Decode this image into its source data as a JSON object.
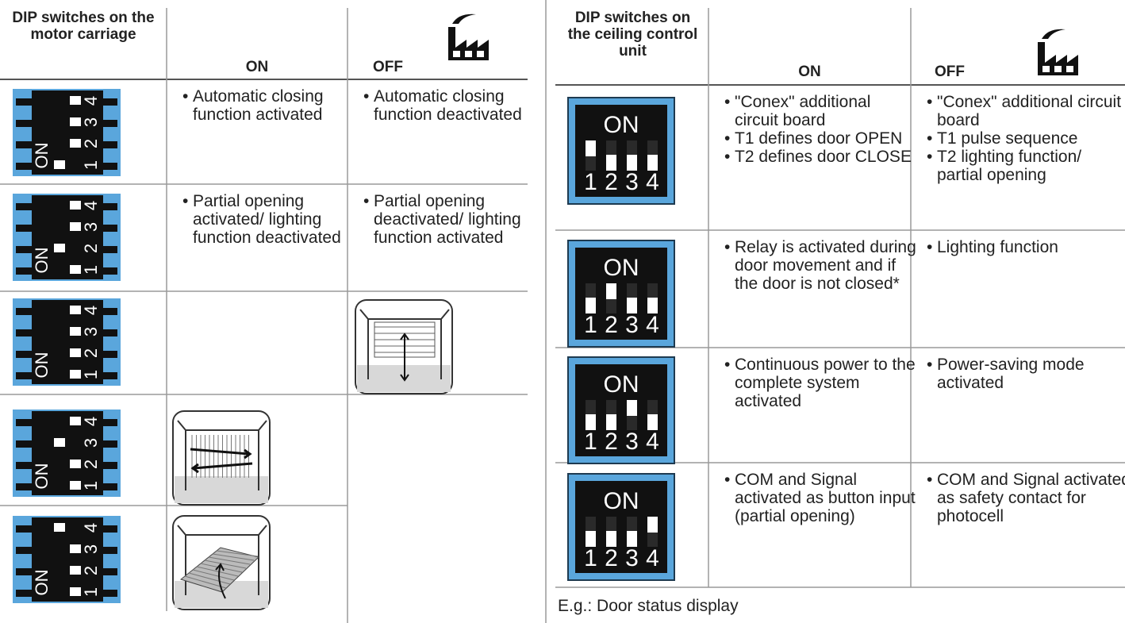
{
  "switch_labels": {
    "on": "ON",
    "numbers": [
      "1",
      "2",
      "3",
      "4"
    ]
  },
  "left_table": {
    "header": {
      "switches": "DIP switches on the motor carriage",
      "on": "ON",
      "off": "OFF"
    },
    "rows": [
      {
        "on": [
          "Automatic closing function activated"
        ],
        "off": [
          "Automatic closing function deactivated"
        ]
      },
      {
        "on": [
          "Partial opening activated/ lighting function deactivated"
        ],
        "off": [
          "Partial opening deactivated/ lighting function activated"
        ]
      }
    ]
  },
  "right_table": {
    "header": {
      "switches": "DIP switches on the ceiling control unit",
      "on": "ON",
      "off": "OFF"
    },
    "rows": [
      {
        "on": [
          "\"Conex\" additional circuit board",
          "T1 defines door OPEN",
          "T2 defines door CLOSE"
        ],
        "off": [
          "\"Conex\" additional circuit board",
          "T1 pulse sequence",
          "T2 lighting function/ partial opening"
        ]
      },
      {
        "on": [
          "Relay is activated during door movement and if the door is not closed*"
        ],
        "off": [
          "Lighting function"
        ]
      },
      {
        "on": [
          "Continuous power to the complete system activated"
        ],
        "off": [
          "Power-saving mode activated"
        ]
      },
      {
        "on": [
          "COM and Signal activated as button input (partial opening)"
        ],
        "off": [
          "COM and Signal activated as safety contact for photocell"
        ]
      }
    ]
  },
  "footer": "E.g.: Door status display"
}
